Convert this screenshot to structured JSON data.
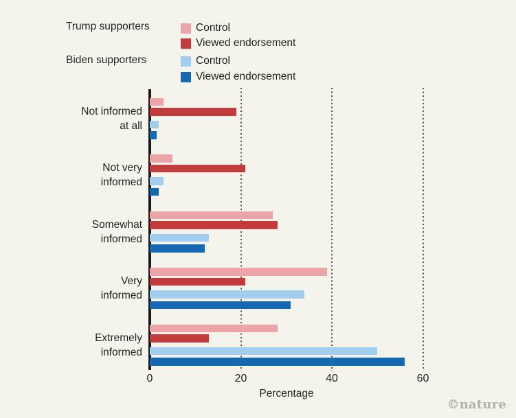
{
  "colors": {
    "background": "#f4f3ec",
    "trump_control": "#eda4a8",
    "trump_endorsement": "#c23b3d",
    "biden_control": "#a1cdee",
    "biden_endorsement": "#1569b3",
    "axis": "#1a1a19",
    "grid_dot": "#52514a",
    "text": "#232321",
    "credit_gray": "#b3b1a9"
  },
  "legend": {
    "trump_label": "Trump supporters",
    "biden_label": "Biden supporters",
    "items": [
      {
        "label": "Control",
        "series": "trump_control"
      },
      {
        "label": "Viewed endorsement",
        "series": "trump_endorsement"
      },
      {
        "label": "Control",
        "series": "biden_control"
      },
      {
        "label": "Viewed endorsement",
        "series": "biden_endorsement"
      }
    ]
  },
  "chart_data": {
    "type": "bar",
    "orientation": "horizontal",
    "title": "",
    "xlabel": "Percentage",
    "ylabel": "",
    "xlim": [
      0,
      65
    ],
    "xticks": [
      0,
      20,
      40,
      60
    ],
    "grid": "dotted vertical gridlines at 20, 40, 60",
    "legend_position": "top",
    "categories": [
      [
        "Not informed",
        "at all"
      ],
      [
        "Not very",
        "informed"
      ],
      [
        "Somewhat",
        "informed"
      ],
      [
        "Very",
        "informed"
      ],
      [
        "Extremely",
        "informed"
      ]
    ],
    "series": [
      {
        "name": "Trump supporters – Control",
        "color": "#eda4a8",
        "values": [
          3,
          5,
          27,
          39,
          28
        ]
      },
      {
        "name": "Trump supporters – Viewed endorsement",
        "color": "#c23b3d",
        "values": [
          19,
          21,
          28,
          21,
          13
        ]
      },
      {
        "name": "Biden supporters – Control",
        "color": "#a1cdee",
        "values": [
          2,
          3,
          13,
          34,
          50
        ]
      },
      {
        "name": "Biden supporters – Viewed endorsement",
        "color": "#1569b3",
        "values": [
          1.5,
          2,
          12,
          31,
          56
        ]
      }
    ]
  },
  "credit": "©nature"
}
